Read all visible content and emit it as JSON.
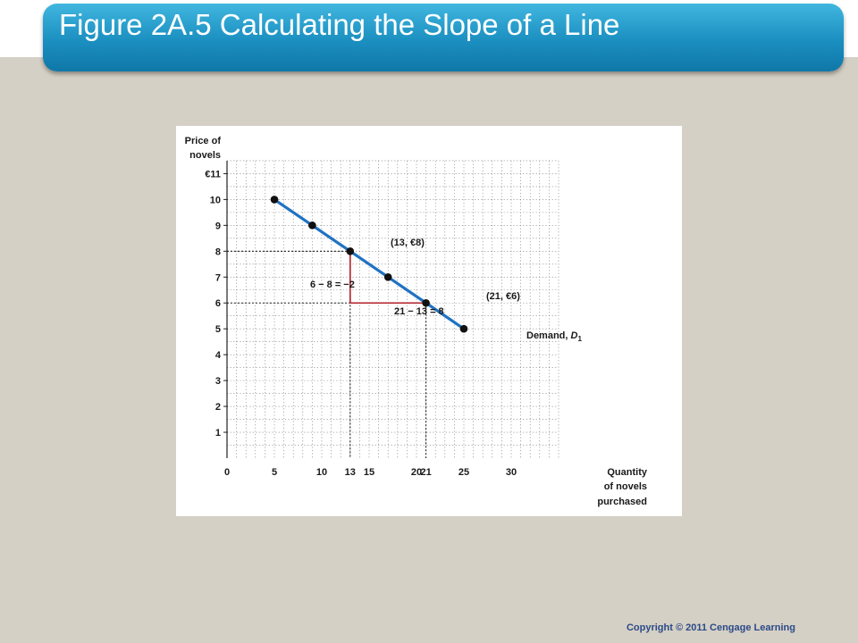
{
  "slide": {
    "title": "Figure 2A.5 Calculating the Slope of a Line",
    "copyright": "Copyright © 2011 Cengage Learning",
    "title_bar_color": "#1b8fc0",
    "background_color": "#d5d0c5"
  },
  "chart_data": {
    "type": "line",
    "ylabel_lines": [
      "Price of",
      "novels"
    ],
    "xlabel_lines": [
      "Quantity",
      "of novels",
      "purchased"
    ],
    "xlim": [
      0,
      35
    ],
    "ylim": [
      0,
      11.5
    ],
    "x_ticks": [
      {
        "value": 0,
        "label": "0"
      },
      {
        "value": 5,
        "label": "5"
      },
      {
        "value": 10,
        "label": "10"
      },
      {
        "value": 13,
        "label": "13"
      },
      {
        "value": 15,
        "label": "15"
      },
      {
        "value": 20,
        "label": "20"
      },
      {
        "value": 21,
        "label": "21"
      },
      {
        "value": 25,
        "label": "25"
      },
      {
        "value": 30,
        "label": "30"
      }
    ],
    "y_ticks": [
      {
        "value": 11,
        "label": "€11"
      },
      {
        "value": 10,
        "label": "10"
      },
      {
        "value": 9,
        "label": "9"
      },
      {
        "value": 8,
        "label": "8"
      },
      {
        "value": 7,
        "label": "7"
      },
      {
        "value": 6,
        "label": "6"
      },
      {
        "value": 5,
        "label": "5"
      },
      {
        "value": 4,
        "label": "4"
      },
      {
        "value": 3,
        "label": "3"
      },
      {
        "value": 2,
        "label": "2"
      },
      {
        "value": 1,
        "label": "1"
      }
    ],
    "grid": true,
    "series": [
      {
        "name": "Demand, D1",
        "color": "#1f72c2",
        "points": [
          {
            "x": 5,
            "y": 10
          },
          {
            "x": 9,
            "y": 9
          },
          {
            "x": 13,
            "y": 8
          },
          {
            "x": 17,
            "y": 7
          },
          {
            "x": 21,
            "y": 6
          },
          {
            "x": 25,
            "y": 5
          }
        ]
      }
    ],
    "series_label": {
      "text": "Demand, ",
      "italic": "D",
      "sub": "1"
    },
    "annotations": {
      "point_a": {
        "text": "(13, €8)",
        "x": 13,
        "y": 8
      },
      "point_b": {
        "text": "(21, €6)",
        "x": 21,
        "y": 6
      },
      "rise": {
        "text": "6 − 8 = −2",
        "x": 13,
        "y_from": 8,
        "y_to": 6
      },
      "run": {
        "text": "21 − 13 = 8",
        "x_from": 13,
        "x_to": 21,
        "y": 6
      },
      "triangle_color": "#b3202a"
    }
  }
}
